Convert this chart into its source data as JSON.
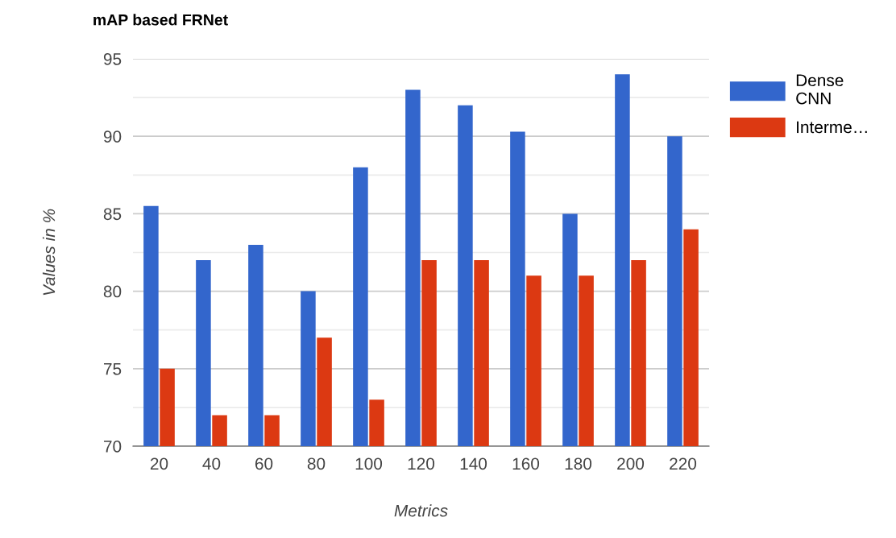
{
  "chart_data": {
    "type": "bar",
    "title": "mAP based FRNet",
    "xlabel": "Metrics",
    "ylabel": "Values in %",
    "categories": [
      "20",
      "40",
      "60",
      "80",
      "100",
      "120",
      "140",
      "160",
      "180",
      "200",
      "220"
    ],
    "series": [
      {
        "name": "Dense CNN",
        "color": "#3366cc",
        "values": [
          85.5,
          82,
          83,
          80,
          88,
          93,
          92,
          90.3,
          85,
          94,
          90
        ]
      },
      {
        "name": "Interme…",
        "color": "#dc3912",
        "values": [
          75,
          72,
          72,
          77,
          73,
          82,
          82,
          81,
          81,
          82,
          84
        ]
      }
    ],
    "ylim": [
      70,
      95
    ],
    "yticks": [
      70,
      {
        "value": 72.5,
        "label": null
      },
      75,
      {
        "value": 77.5,
        "label": null
      },
      80,
      {
        "value": 82.5,
        "label": null
      },
      85,
      {
        "value": 87.5,
        "label": null
      },
      90,
      {
        "value": 92.5,
        "label": null
      },
      95
    ],
    "grid": "y",
    "legend": "top right"
  }
}
